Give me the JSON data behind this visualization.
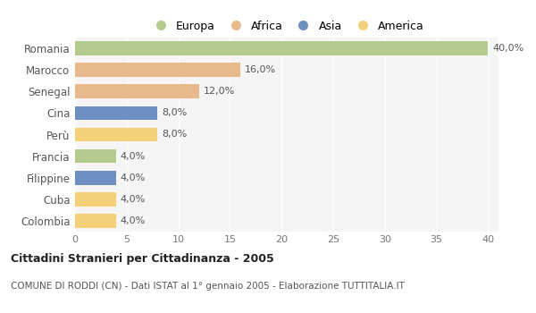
{
  "categories": [
    "Romania",
    "Marocco",
    "Senegal",
    "Cina",
    "Perù",
    "Francia",
    "Filippine",
    "Cuba",
    "Colombia"
  ],
  "values": [
    40.0,
    16.0,
    12.0,
    8.0,
    8.0,
    4.0,
    4.0,
    4.0,
    4.0
  ],
  "colors": [
    "#b5cb8e",
    "#e8b98a",
    "#e8b98a",
    "#6e8fc1",
    "#f5d07a",
    "#b5cb8e",
    "#6e8fc1",
    "#f5d07a",
    "#f5d07a"
  ],
  "legend": [
    {
      "label": "Europa",
      "color": "#b5cb8e"
    },
    {
      "label": "Africa",
      "color": "#e8b98a"
    },
    {
      "label": "Asia",
      "color": "#6e8fc1"
    },
    {
      "label": "America",
      "color": "#f5d07a"
    }
  ],
  "xlim": [
    0,
    41
  ],
  "xticks": [
    0,
    5,
    10,
    15,
    20,
    25,
    30,
    35,
    40
  ],
  "title": "Cittadini Stranieri per Cittadinanza - 2005",
  "subtitle": "COMUNE DI RODDI (CN) - Dati ISTAT al 1° gennaio 2005 - Elaborazione TUTTITALIA.IT",
  "background_color": "#ffffff",
  "plot_bg_color": "#f5f5f5",
  "grid_color": "#ffffff",
  "bar_height": 0.65
}
